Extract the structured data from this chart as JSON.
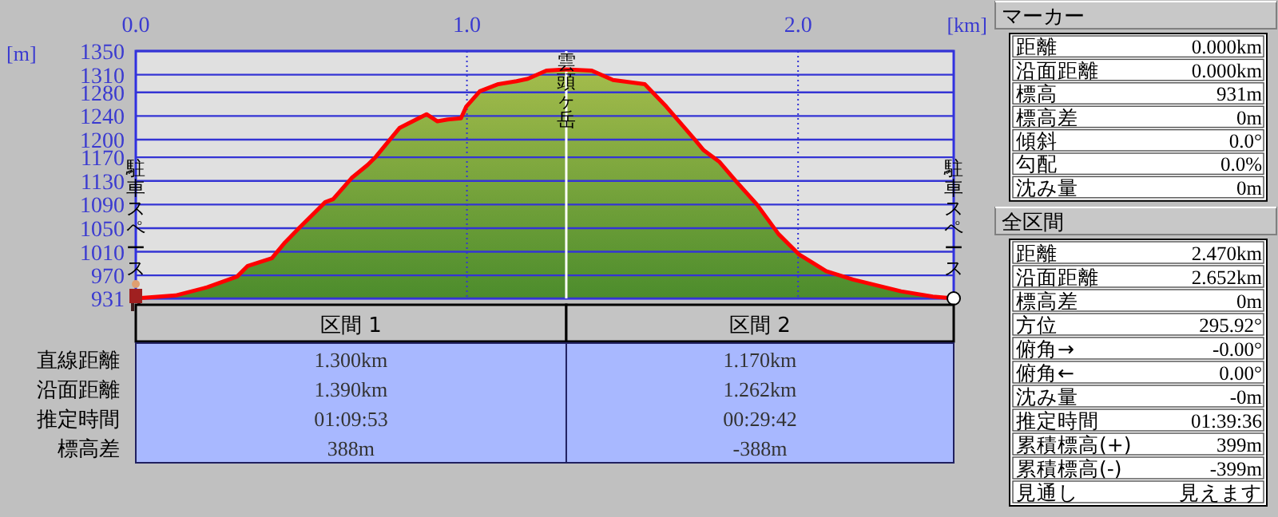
{
  "chart_data": {
    "type": "area",
    "xlabel": "[km]",
    "ylabel": "[m]",
    "x": [
      0,
      0.12,
      0.217,
      0.306,
      0.338,
      0.411,
      0.451,
      0.491,
      0.572,
      0.596,
      0.652,
      0.7,
      0.725,
      0.797,
      0.878,
      0.911,
      0.942,
      0.982,
      0.998,
      1.039,
      1.095,
      1.15,
      1.184,
      1.24,
      1.3,
      1.377,
      1.441,
      1.537,
      1.602,
      1.691,
      1.715,
      1.763,
      1.812,
      1.876,
      1.941,
      2.002,
      2.085,
      2.166,
      2.311,
      2.407,
      2.47
    ],
    "series": [
      {
        "color": "#ff0000",
        "values": [
          931,
          936,
          950,
          968,
          986,
          999,
          1026,
          1049,
          1094,
          1099,
          1135,
          1157,
          1171,
          1220,
          1243,
          1231,
          1234,
          1236,
          1256,
          1282,
          1294,
          1299,
          1303,
          1317,
          1319,
          1317,
          1301,
          1294,
          1256,
          1198,
          1182,
          1162,
          1130,
          1090,
          1040,
          1006,
          977,
          963,
          943,
          934,
          931
        ]
      }
    ],
    "xlim": [
      0,
      2.47
    ],
    "xticks": [
      {
        "value": 0,
        "label": "0.0"
      },
      {
        "value": 1,
        "label": "1.0"
      },
      {
        "value": 2,
        "label": "2.0"
      }
    ],
    "ylim": [
      931,
      1350
    ],
    "yticks": [
      931,
      970,
      1010,
      1050,
      1090,
      1130,
      1170,
      1200,
      1240,
      1280,
      1310,
      1350
    ],
    "grid": true,
    "ref_lines": [
      {
        "axis": "x",
        "value": 1.3,
        "label": "雲頭ヶ岳",
        "color": "#ffffff"
      }
    ],
    "annotations": [
      "マーカー",
      "距離",
      "0.000km",
      "沿面距離",
      "0.000km",
      "標高",
      "931m",
      "標高差",
      "0m",
      "傾斜",
      "0.0°",
      "勾配",
      "0.0%",
      "沈み量",
      "0m",
      "全区間",
      "距離",
      "2.470km",
      "沿面距離",
      "2.652km",
      "標高差",
      "0m",
      "方位",
      "295.92°",
      "俯角→",
      "-0.00°",
      "俯角←",
      "0.00°",
      "沈み量",
      "-0m",
      "推定時間",
      "01:39:36",
      "累積標高(+)",
      "399m",
      "累積標高(-)",
      "-399m",
      "見通し",
      "見えます",
      "区間 1",
      "区間 2",
      "直線距離",
      "1.300km",
      "1.170km",
      "沿面距離",
      "1.390km",
      "1.262km",
      "推定時間",
      "01:09:53",
      "00:29:42",
      "標高差",
      "388m",
      "-388m",
      "駐車スペース",
      "駐車スペース"
    ]
  }
}
